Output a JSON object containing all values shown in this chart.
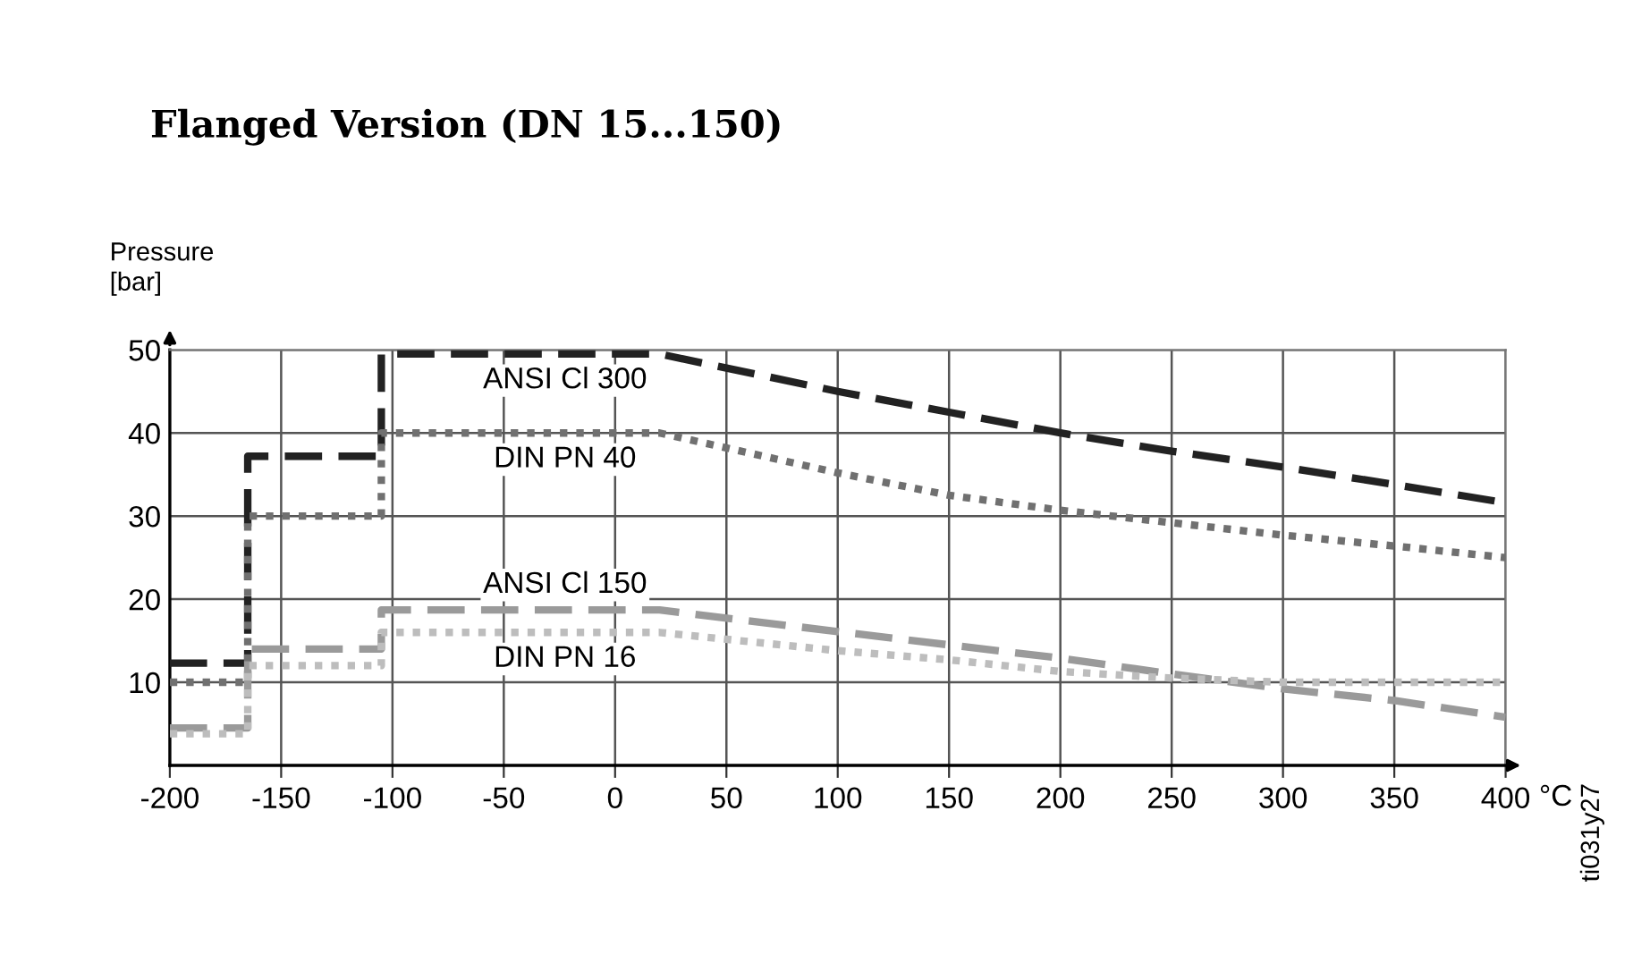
{
  "chart_data": {
    "type": "line",
    "title": "Flanged Version (DN 15...150)",
    "ylabel": "Pressure\n[bar]",
    "xlabel": "°C",
    "xlim": [
      -200,
      400
    ],
    "ylim": [
      0,
      50
    ],
    "xticks": [
      -200,
      -150,
      -100,
      -50,
      0,
      50,
      100,
      150,
      200,
      250,
      300,
      350,
      400
    ],
    "yticks": [
      10,
      20,
      30,
      40,
      50
    ],
    "grid": true,
    "marker": "none",
    "series": [
      {
        "name": "ANSI Cl 300",
        "color": "#222222",
        "line_style": "dashed",
        "x": [
          -200,
          -165,
          -165,
          -105,
          -105,
          20,
          100,
          150,
          200,
          250,
          300,
          350,
          400
        ],
        "values": [
          12.3,
          12.3,
          37.2,
          37.2,
          49.5,
          49.5,
          45,
          42.5,
          40,
          37.8,
          35.9,
          33.8,
          31.6
        ]
      },
      {
        "name": "DIN PN 40",
        "color": "#707070",
        "line_style": "dotted",
        "x": [
          -200,
          -165,
          -165,
          -105,
          -105,
          20,
          100,
          150,
          200,
          250,
          300,
          350,
          400
        ],
        "values": [
          10,
          10,
          30,
          30,
          40,
          40,
          35.2,
          32.5,
          30.7,
          29.2,
          27.7,
          26.4,
          25
        ]
      },
      {
        "name": "ANSI Cl 150",
        "color": "#9a9a9a",
        "line_style": "dashed",
        "x": [
          -200,
          -165,
          -165,
          -105,
          -105,
          20,
          100,
          150,
          200,
          250,
          300,
          350,
          400
        ],
        "values": [
          4.5,
          4.5,
          14,
          14,
          18.7,
          18.7,
          16.1,
          14.5,
          12.9,
          11,
          9.2,
          7.8,
          5.8
        ]
      },
      {
        "name": "DIN PN 16",
        "color": "#bdbdbd",
        "line_style": "dotted",
        "x": [
          -200,
          -165,
          -165,
          -105,
          -105,
          20,
          100,
          150,
          200,
          250,
          300,
          400
        ],
        "values": [
          3.8,
          3.8,
          12,
          12,
          16,
          16,
          13.8,
          12.7,
          11.3,
          10.5,
          10,
          10
        ]
      }
    ],
    "annotations": [
      "ti031y27"
    ]
  }
}
